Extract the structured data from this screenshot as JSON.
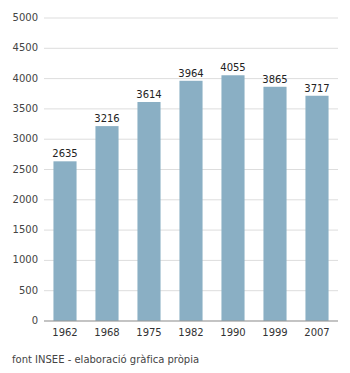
{
  "chart_data": {
    "type": "bar",
    "categories": [
      "1962",
      "1968",
      "1975",
      "1982",
      "1990",
      "1999",
      "2007"
    ],
    "values": [
      2635,
      3216,
      3614,
      3964,
      4055,
      3865,
      3717
    ],
    "color": "#8aafc4",
    "ylim": [
      0,
      5000
    ],
    "yticks": [
      0,
      500,
      1000,
      1500,
      2000,
      2500,
      3000,
      3500,
      4000,
      4500,
      5000
    ],
    "grid": true,
    "data_labels": true,
    "annotations": [
      "font INSEE - elaboració gràfica pròpia"
    ]
  }
}
